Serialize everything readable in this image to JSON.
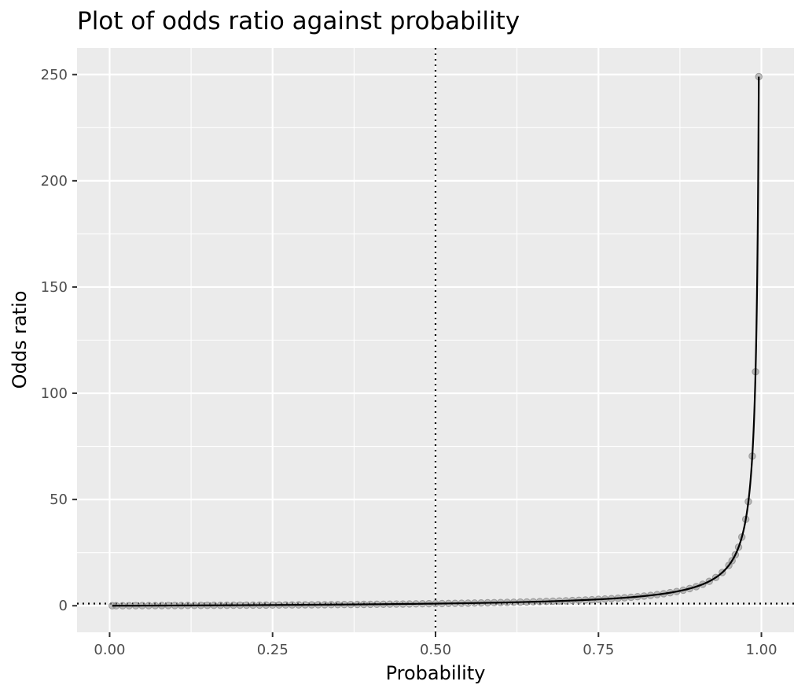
{
  "chart_data": {
    "type": "scatter",
    "title": "Plot of odds ratio against probability",
    "xlabel": "Probability",
    "ylabel": "Odds ratio",
    "xlim": [
      -0.05,
      1.05
    ],
    "ylim": [
      -12.5,
      262.5
    ],
    "x_ticks": [
      0,
      0.25,
      0.5,
      0.75,
      1
    ],
    "x_tick_labels": [
      "0.00",
      "0.25",
      "0.50",
      "0.75",
      "1.00"
    ],
    "y_ticks": [
      0,
      50,
      100,
      150,
      200,
      250
    ],
    "y_tick_labels": [
      "0",
      "50",
      "100",
      "150",
      "200",
      "250"
    ],
    "x_minor_ticks": [
      0.125,
      0.375,
      0.625,
      0.875
    ],
    "y_minor_ticks": [
      25,
      75,
      125,
      175,
      225
    ],
    "reference_lines": {
      "vertical_x": 0.5,
      "horizontal_y": 1
    },
    "grid": true,
    "legend": "none",
    "series": [
      {
        "type": "points",
        "x": [
          0.004,
          0.01,
          0.02,
          0.03,
          0.04,
          0.05,
          0.06,
          0.07,
          0.08,
          0.09,
          0.1,
          0.11,
          0.12,
          0.13,
          0.14,
          0.15,
          0.16,
          0.17,
          0.18,
          0.19,
          0.2,
          0.21,
          0.22,
          0.23,
          0.24,
          0.25,
          0.26,
          0.27,
          0.28,
          0.29,
          0.3,
          0.31,
          0.32,
          0.33,
          0.34,
          0.35,
          0.36,
          0.37,
          0.38,
          0.39,
          0.4,
          0.41,
          0.42,
          0.43,
          0.44,
          0.45,
          0.46,
          0.47,
          0.48,
          0.49,
          0.5,
          0.51,
          0.52,
          0.53,
          0.54,
          0.55,
          0.56,
          0.57,
          0.58,
          0.59,
          0.6,
          0.61,
          0.62,
          0.63,
          0.64,
          0.65,
          0.66,
          0.67,
          0.68,
          0.69,
          0.7,
          0.71,
          0.72,
          0.73,
          0.74,
          0.75,
          0.76,
          0.77,
          0.78,
          0.79,
          0.8,
          0.81,
          0.82,
          0.83,
          0.84,
          0.85,
          0.86,
          0.87,
          0.88,
          0.89,
          0.9,
          0.91,
          0.92,
          0.93,
          0.94,
          0.95,
          0.955,
          0.96,
          0.965,
          0.97,
          0.976,
          0.98,
          0.986,
          0.991,
          0.996
        ],
        "y": [
          0.004,
          0.0101,
          0.0204,
          0.0309,
          0.0417,
          0.0526,
          0.0638,
          0.0753,
          0.087,
          0.0989,
          0.1111,
          0.1236,
          0.1364,
          0.1494,
          0.1628,
          0.1765,
          0.1905,
          0.2048,
          0.2195,
          0.2346,
          0.25,
          0.2658,
          0.2821,
          0.2987,
          0.3158,
          0.3333,
          0.3514,
          0.3699,
          0.3889,
          0.4085,
          0.4286,
          0.4493,
          0.4706,
          0.4925,
          0.5152,
          0.5385,
          0.5625,
          0.5873,
          0.6129,
          0.6393,
          0.6667,
          0.6949,
          0.7241,
          0.7544,
          0.7857,
          0.8182,
          0.8519,
          0.8868,
          0.9231,
          0.9608,
          1,
          1.0408,
          1.0833,
          1.1277,
          1.1739,
          1.2222,
          1.2727,
          1.3256,
          1.381,
          1.439,
          1.5,
          1.5641,
          1.6316,
          1.7027,
          1.7778,
          1.8571,
          1.9412,
          2.0303,
          2.125,
          2.2258,
          2.3333,
          2.4483,
          2.5714,
          2.7037,
          2.8462,
          3,
          3.1667,
          3.3478,
          3.5455,
          3.7619,
          4,
          4.2632,
          4.5556,
          4.8824,
          5.25,
          5.6667,
          6.1429,
          6.6923,
          7.3333,
          8.0909,
          9,
          10.1111,
          11.5,
          13.2857,
          15.6667,
          19,
          21.2222,
          24,
          27.5714,
          32.3333,
          40.6667,
          49,
          70.4286,
          110.1111,
          249
        ]
      },
      {
        "type": "curve",
        "function": "p / (1 - p)",
        "x_range": [
          0.004,
          0.996
        ]
      }
    ]
  }
}
